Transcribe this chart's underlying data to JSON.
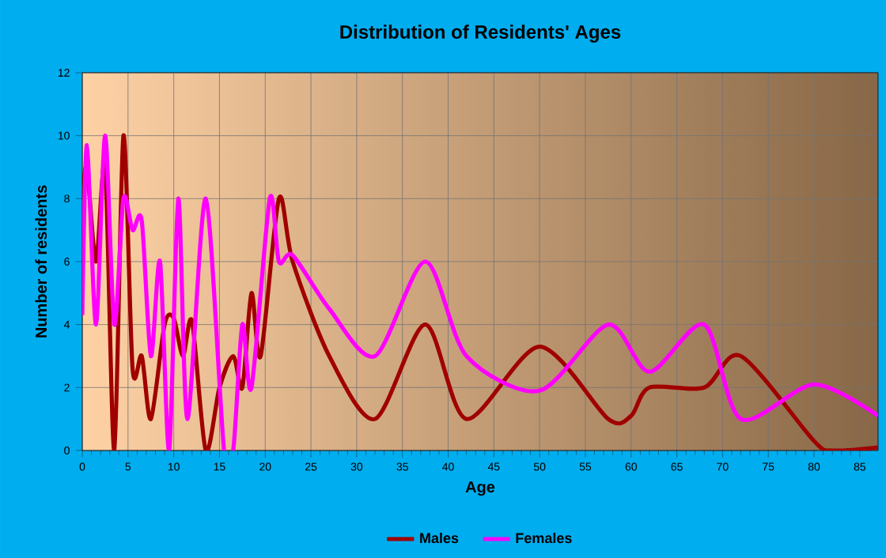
{
  "chart_data": {
    "type": "line",
    "title": "Distribution of Residents' Ages",
    "xlabel": "Age",
    "ylabel": "Number of residents",
    "xlim": [
      0,
      87
    ],
    "ylim": [
      0,
      12
    ],
    "xticks": [
      0,
      5,
      10,
      15,
      20,
      25,
      30,
      35,
      40,
      45,
      50,
      55,
      60,
      65,
      70,
      75,
      80,
      85
    ],
    "yticks": [
      0,
      2,
      4,
      6,
      8,
      10,
      12
    ],
    "grid": true,
    "legend": "bottom",
    "marker": "none",
    "line_style": "solid",
    "series": [
      {
        "name": "Males",
        "color": "#a00000",
        "x": [
          0,
          0.5,
          1.5,
          2.5,
          3.5,
          4.5,
          5.5,
          6.5,
          7.5,
          9,
          10,
          11,
          12,
          13.5,
          15,
          16.5,
          17.5,
          18.5,
          19.5,
          21.5,
          23,
          27,
          32,
          37.5,
          42,
          50,
          57.5,
          60,
          62,
          68,
          72,
          80,
          82,
          87
        ],
        "values": [
          8,
          9,
          6,
          9,
          0,
          10,
          2.6,
          3,
          1,
          4,
          4.2,
          3,
          4.1,
          0,
          2,
          3,
          2,
          5,
          3,
          8,
          6,
          3,
          1,
          4,
          1,
          3.3,
          1,
          1.1,
          2,
          2,
          3,
          0.3,
          0,
          0.1
        ]
      },
      {
        "name": "Females",
        "color": "#ff00ff",
        "x": [
          0,
          0.5,
          1.5,
          2.5,
          3.5,
          4.5,
          5.5,
          6.5,
          7.5,
          8.5,
          9.5,
          10.5,
          11.5,
          13.5,
          15.5,
          16.5,
          17.5,
          18.5,
          20.5,
          21.5,
          23,
          27,
          32,
          37.5,
          42,
          50,
          57.5,
          62,
          68,
          72,
          80,
          87
        ],
        "values": [
          4.3,
          9.7,
          4,
          10,
          4,
          8,
          7,
          7.3,
          3,
          6,
          0,
          8,
          1,
          8,
          0,
          0,
          4,
          2,
          8,
          6,
          6.2,
          4.5,
          3,
          6,
          3,
          1.9,
          4,
          2.5,
          4,
          1,
          2.1,
          1.1
        ]
      }
    ]
  }
}
